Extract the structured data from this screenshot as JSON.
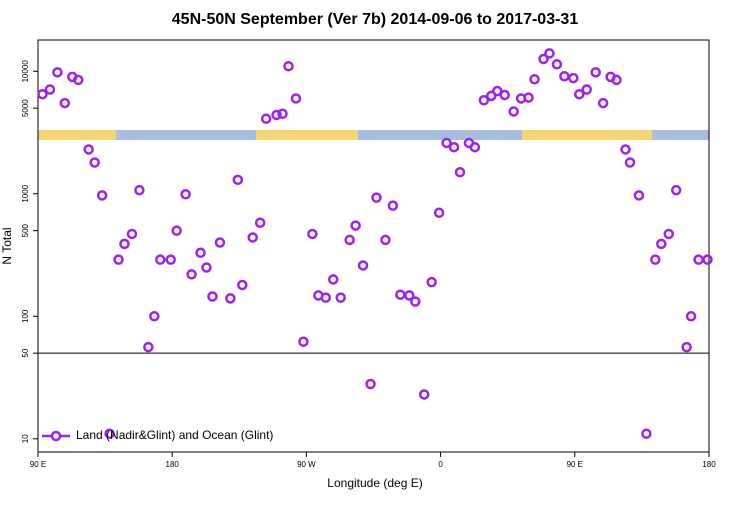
{
  "chart_data": {
    "type": "scatter",
    "title": "45N-50N September (Ver 7b)   2014-09-06 to 2017-03-31",
    "xlabel": "Longitude (deg E)",
    "ylabel": "N Total",
    "log_y": true,
    "legend": "bottomleft",
    "xlim": [
      90,
      540
    ],
    "xticks": [
      {
        "value": 90,
        "label": "90 E"
      },
      {
        "value": 180,
        "label": "180"
      },
      {
        "value": 270,
        "label": "90 W"
      },
      {
        "value": 360,
        "label": "0"
      },
      {
        "value": 450,
        "label": "90 E"
      },
      {
        "value": 540,
        "label": "180"
      }
    ],
    "ylim": [
      7.8,
      18000
    ],
    "yticks": [
      10,
      50,
      100,
      500,
      1000,
      5000,
      10000
    ],
    "hline": 50,
    "series": [
      {
        "name": "Land (Nadir&Glint) and Ocean (Glint)",
        "color": "#a020f0",
        "x": [
          93,
          98,
          103,
          108,
          113,
          117,
          124,
          128,
          133,
          138,
          144,
          148,
          153,
          158,
          164,
          168,
          172,
          179,
          183,
          189,
          193,
          199,
          203,
          207,
          212,
          219,
          224,
          227,
          234,
          239,
          243,
          250,
          254,
          258,
          263,
          268,
          274,
          278,
          283,
          288,
          293,
          299,
          303,
          308,
          313,
          317,
          323,
          328,
          333,
          339,
          343,
          349,
          354,
          359,
          364,
          369,
          373,
          379,
          383,
          389,
          394,
          398,
          403,
          409,
          414,
          419,
          423,
          429,
          433,
          438,
          443,
          449,
          453,
          458,
          464,
          469,
          474,
          478,
          484,
          487,
          493,
          498,
          504,
          508,
          513,
          518,
          525,
          528,
          533,
          539
        ],
        "values": [
          6500,
          7100,
          9800,
          5500,
          9000,
          8500,
          2300,
          1800,
          970,
          11,
          290,
          390,
          470,
          1070,
          56,
          100,
          290,
          290,
          500,
          990,
          220,
          330,
          250,
          145,
          400,
          140,
          1300,
          180,
          440,
          580,
          4100,
          4400,
          4500,
          11000,
          6000,
          62,
          470,
          148,
          142,
          200,
          142,
          420,
          550,
          260,
          28,
          930,
          420,
          800,
          150,
          148,
          132,
          23,
          190,
          700,
          2600,
          2400,
          1500,
          2600,
          2400,
          5800,
          6300,
          6900,
          6400,
          4700,
          6000,
          6100,
          8600,
          12600,
          14000,
          11400,
          9100,
          8800,
          6500,
          7100,
          9800,
          5500,
          9000,
          8500,
          2300,
          1800,
          970,
          11,
          290,
          390,
          470,
          1070,
          56,
          100,
          290,
          290
        ]
      }
    ]
  }
}
